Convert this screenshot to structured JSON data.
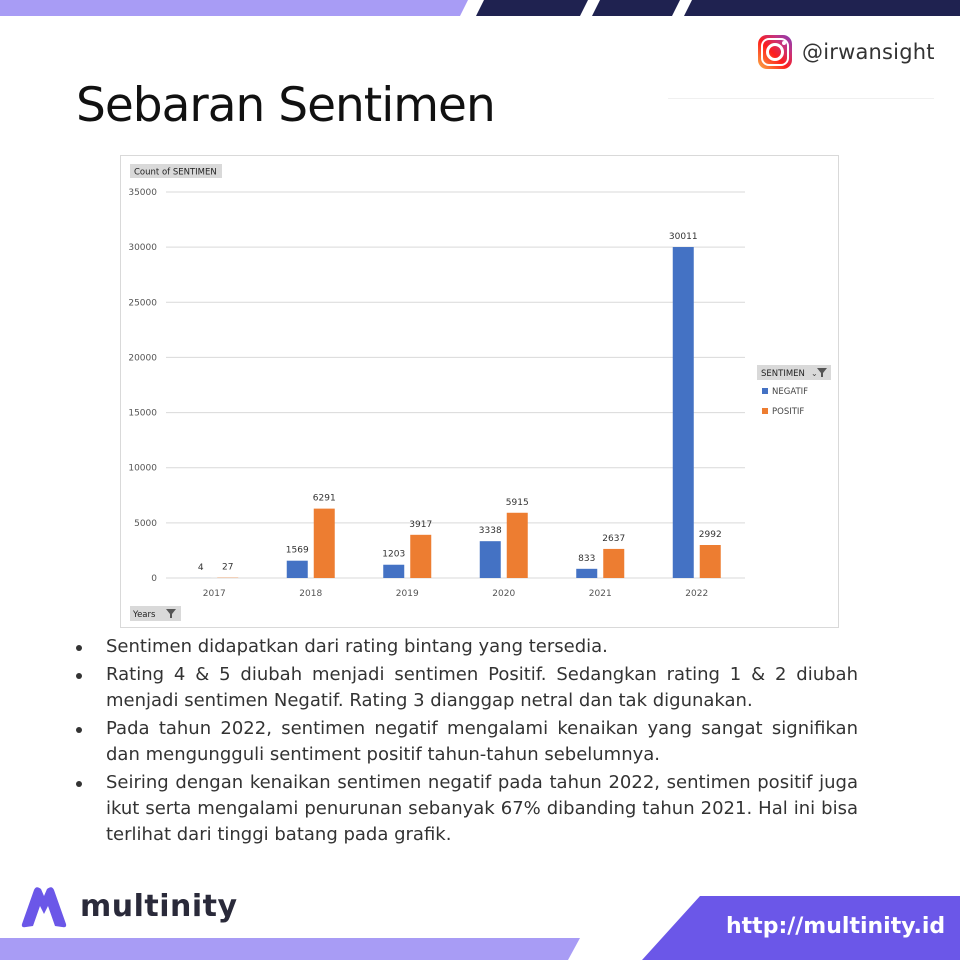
{
  "header": {
    "handle": "@irwansight",
    "title": "Sebaran Sentimen"
  },
  "chart_data": {
    "type": "bar",
    "categories": [
      "2017",
      "2018",
      "2019",
      "2020",
      "2021",
      "2022"
    ],
    "series": [
      {
        "name": "NEGATIF",
        "values": [
          4,
          1569,
          1203,
          3338,
          833,
          30011
        ],
        "color": "#4472C4"
      },
      {
        "name": "POSITIF",
        "values": [
          27,
          6291,
          3917,
          5915,
          2637,
          2992
        ],
        "color": "#ED7D31"
      }
    ],
    "ylim": [
      0,
      35000
    ],
    "yticks": [
      0,
      5000,
      10000,
      15000,
      20000,
      25000,
      30000,
      35000
    ],
    "value_field_label": "Count of SENTIMEN",
    "axis_field_label": "Years",
    "legend_field_label": "SENTIMEN",
    "legend_position": "right",
    "grid": true
  },
  "bullets": [
    "Sentimen didapatkan dari rating bintang yang tersedia.",
    "Rating 4 & 5 diubah menjadi sentimen Positif. Sedangkan rating 1 & 2 diubah menjadi sentimen Negatif. Rating 3 dianggap netral dan tak digunakan.",
    "Pada tahun 2022, sentimen negatif mengalami kenaikan yang sangat signifikan dan mengungguli sentiment positif tahun-tahun sebelumnya.",
    "Seiring dengan kenaikan sentimen negatif pada tahun 2022, sentimen positif juga ikut serta mengalami penurunan sebanyak 67% dibanding tahun 2021. Hal ini bisa terlihat dari tinggi batang pada grafik."
  ],
  "footer": {
    "brand": "multinity",
    "url": "http://multinity.id"
  },
  "colors": {
    "brand_purple": "#6b57e8",
    "stripe_navy": "#1f2250",
    "stripe_lavender": "#a89cf5"
  },
  "icons": {
    "instagram": "instagram-icon",
    "logo": "multinity-logo-icon"
  }
}
